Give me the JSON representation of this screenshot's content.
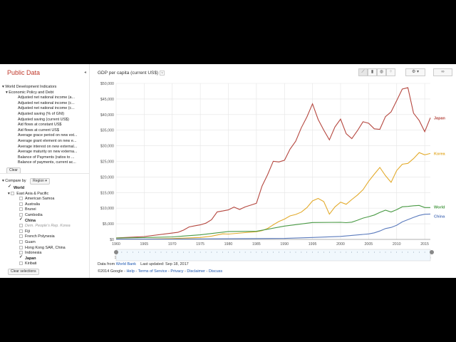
{
  "sidebar": {
    "title": "Public Data",
    "collapse_icon": "chevron-left-icon",
    "tree": {
      "root": "World Development Indicators",
      "group": "Economic Policy and Debt",
      "items": [
        "Adjusted net national income (a...",
        "Adjusted net national income (c...",
        "Adjusted net national income (c...",
        "Adjusted saving (% of GNI)",
        "Adjusted saving (current US$)",
        "Aid flows at constant US$",
        "Aid flows at current US$",
        "Average grace period on new ext...",
        "Average grant element on new e...",
        "Average interest on new external...",
        "Average maturity on new externa...",
        "Balance of Payments (ratios to ...",
        "Balance of payments, current ac..."
      ]
    },
    "clear_label": "Clear",
    "compare_by_label": "Compare by",
    "compare_by_value": "Region",
    "world_label": "World",
    "region_label": "East Asia & Pacific",
    "countries": [
      {
        "name": "American Samoa",
        "checked": false,
        "bold": false,
        "disabled": false
      },
      {
        "name": "Australia",
        "checked": false,
        "bold": false,
        "disabled": false
      },
      {
        "name": "Brunei",
        "checked": false,
        "bold": false,
        "disabled": false
      },
      {
        "name": "Cambodia",
        "checked": false,
        "bold": false,
        "disabled": false
      },
      {
        "name": "China",
        "checked": true,
        "bold": true,
        "disabled": false
      },
      {
        "name": "Dem. People's Rep. Korea",
        "checked": false,
        "bold": false,
        "disabled": true
      },
      {
        "name": "Fiji",
        "checked": false,
        "bold": false,
        "disabled": false
      },
      {
        "name": "French Polynesia",
        "checked": false,
        "bold": false,
        "disabled": false
      },
      {
        "name": "Guam",
        "checked": false,
        "bold": false,
        "disabled": false
      },
      {
        "name": "Hong Kong SAR, China",
        "checked": false,
        "bold": false,
        "disabled": false
      },
      {
        "name": "Indonesia",
        "checked": false,
        "bold": false,
        "disabled": false
      },
      {
        "name": "Japan",
        "checked": true,
        "bold": true,
        "disabled": false
      },
      {
        "name": "Kiribati",
        "checked": false,
        "bold": false,
        "disabled": false
      }
    ],
    "clear_selections_label": "Clear selections"
  },
  "main": {
    "metric_title": "GDP per capita (current US$)",
    "help_label": "?",
    "view_buttons": [
      "line-chart-icon",
      "bar-chart-icon",
      "map-icon",
      "scatter-chart-icon"
    ],
    "settings_icon": "gear-icon",
    "link_icon": "link-icon",
    "source_prefix": "Data from",
    "source_link": "World Bank",
    "last_updated": "Last updated: Sep 18, 2017",
    "copyright": "©2014 Google",
    "footer_links": [
      "Help",
      "Terms of Service",
      "Privacy",
      "Disclaimer",
      "Discuss"
    ]
  },
  "chart_data": {
    "type": "line",
    "title": "GDP per capita (current US$)",
    "xlabel": "",
    "ylabel": "",
    "xlim": [
      1960,
      2016
    ],
    "ylim": [
      0,
      50000
    ],
    "yticks": [
      "$0",
      "$5,000",
      "$10,000",
      "$15,000",
      "$20,000",
      "$25,000",
      "$30,000",
      "$35,000",
      "$40,000",
      "$45,000",
      "$50,000"
    ],
    "xticks": [
      "1960",
      "1965",
      "1970",
      "1975",
      "1980",
      "1985",
      "1990",
      "1995",
      "2000",
      "2005",
      "2010",
      "2015"
    ],
    "grid": true,
    "legend": "right-end labels",
    "series": [
      {
        "name": "Japan",
        "color": "#b5473f",
        "points": [
          [
            1960,
            479
          ],
          [
            1965,
            920
          ],
          [
            1970,
            2040
          ],
          [
            1971,
            2270
          ],
          [
            1972,
            2970
          ],
          [
            1973,
            3990
          ],
          [
            1974,
            4350
          ],
          [
            1975,
            4660
          ],
          [
            1976,
            5200
          ],
          [
            1977,
            6330
          ],
          [
            1978,
            8820
          ],
          [
            1979,
            9100
          ],
          [
            1980,
            9460
          ],
          [
            1981,
            10360
          ],
          [
            1982,
            9580
          ],
          [
            1983,
            10420
          ],
          [
            1984,
            10980
          ],
          [
            1985,
            11580
          ],
          [
            1986,
            17110
          ],
          [
            1987,
            20750
          ],
          [
            1988,
            25050
          ],
          [
            1989,
            24810
          ],
          [
            1990,
            25360
          ],
          [
            1991,
            28930
          ],
          [
            1992,
            31460
          ],
          [
            1993,
            35770
          ],
          [
            1994,
            39270
          ],
          [
            1995,
            43440
          ],
          [
            1996,
            38440
          ],
          [
            1997,
            35020
          ],
          [
            1998,
            31900
          ],
          [
            1999,
            36030
          ],
          [
            2000,
            38530
          ],
          [
            2001,
            33850
          ],
          [
            2002,
            32290
          ],
          [
            2003,
            34810
          ],
          [
            2004,
            37690
          ],
          [
            2005,
            37220
          ],
          [
            2006,
            35430
          ],
          [
            2007,
            35280
          ],
          [
            2008,
            39340
          ],
          [
            2009,
            40860
          ],
          [
            2010,
            44500
          ],
          [
            2011,
            48170
          ],
          [
            2012,
            48600
          ],
          [
            2013,
            40450
          ],
          [
            2014,
            38100
          ],
          [
            2015,
            34520
          ],
          [
            2016,
            38970
          ]
        ]
      },
      {
        "name": "Korea",
        "color": "#e3ab2d",
        "points": [
          [
            1960,
            158
          ],
          [
            1965,
            108
          ],
          [
            1970,
            279
          ],
          [
            1975,
            615
          ],
          [
            1977,
            1055
          ],
          [
            1979,
            1790
          ],
          [
            1980,
            1715
          ],
          [
            1983,
            2180
          ],
          [
            1985,
            2457
          ],
          [
            1986,
            2803
          ],
          [
            1987,
            3510
          ],
          [
            1988,
            4686
          ],
          [
            1989,
            5738
          ],
          [
            1990,
            6516
          ],
          [
            1991,
            7523
          ],
          [
            1992,
            8001
          ],
          [
            1993,
            8741
          ],
          [
            1994,
            10206
          ],
          [
            1995,
            12333
          ],
          [
            1996,
            13137
          ],
          [
            1997,
            12131
          ],
          [
            1998,
            8085
          ],
          [
            1999,
            10409
          ],
          [
            2000,
            11948
          ],
          [
            2001,
            11253
          ],
          [
            2002,
            12789
          ],
          [
            2003,
            14209
          ],
          [
            2004,
            15908
          ],
          [
            2005,
            18640
          ],
          [
            2006,
            20888
          ],
          [
            2007,
            23061
          ],
          [
            2008,
            20431
          ],
          [
            2009,
            18291
          ],
          [
            2010,
            22087
          ],
          [
            2011,
            24080
          ],
          [
            2012,
            24359
          ],
          [
            2013,
            25890
          ],
          [
            2014,
            27811
          ],
          [
            2015,
            27105
          ],
          [
            2016,
            27539
          ]
        ]
      },
      {
        "name": "World",
        "color": "#4a9a45",
        "points": [
          [
            1960,
            450
          ],
          [
            1965,
            600
          ],
          [
            1970,
            800
          ],
          [
            1975,
            1450
          ],
          [
            1980,
            2530
          ],
          [
            1985,
            2600
          ],
          [
            1990,
            4270
          ],
          [
            1995,
            5400
          ],
          [
            2000,
            5490
          ],
          [
            2001,
            5370
          ],
          [
            2002,
            5520
          ],
          [
            2003,
            6150
          ],
          [
            2004,
            6830
          ],
          [
            2005,
            7280
          ],
          [
            2006,
            7800
          ],
          [
            2007,
            8660
          ],
          [
            2008,
            9370
          ],
          [
            2009,
            8800
          ],
          [
            2010,
            9540
          ],
          [
            2011,
            10450
          ],
          [
            2012,
            10560
          ],
          [
            2013,
            10780
          ],
          [
            2014,
            10880
          ],
          [
            2015,
            10200
          ],
          [
            2016,
            10200
          ]
        ]
      },
      {
        "name": "China",
        "color": "#5b7bbd",
        "points": [
          [
            1960,
            90
          ],
          [
            1970,
            112
          ],
          [
            1980,
            195
          ],
          [
            1990,
            318
          ],
          [
            1995,
            610
          ],
          [
            2000,
            959
          ],
          [
            2005,
            1753
          ],
          [
            2006,
            2099
          ],
          [
            2007,
            2694
          ],
          [
            2008,
            3468
          ],
          [
            2009,
            3832
          ],
          [
            2010,
            4550
          ],
          [
            2011,
            5618
          ],
          [
            2012,
            6316
          ],
          [
            2013,
            7050
          ],
          [
            2014,
            7684
          ],
          [
            2015,
            8069
          ],
          [
            2016,
            8123
          ]
        ]
      }
    ]
  }
}
